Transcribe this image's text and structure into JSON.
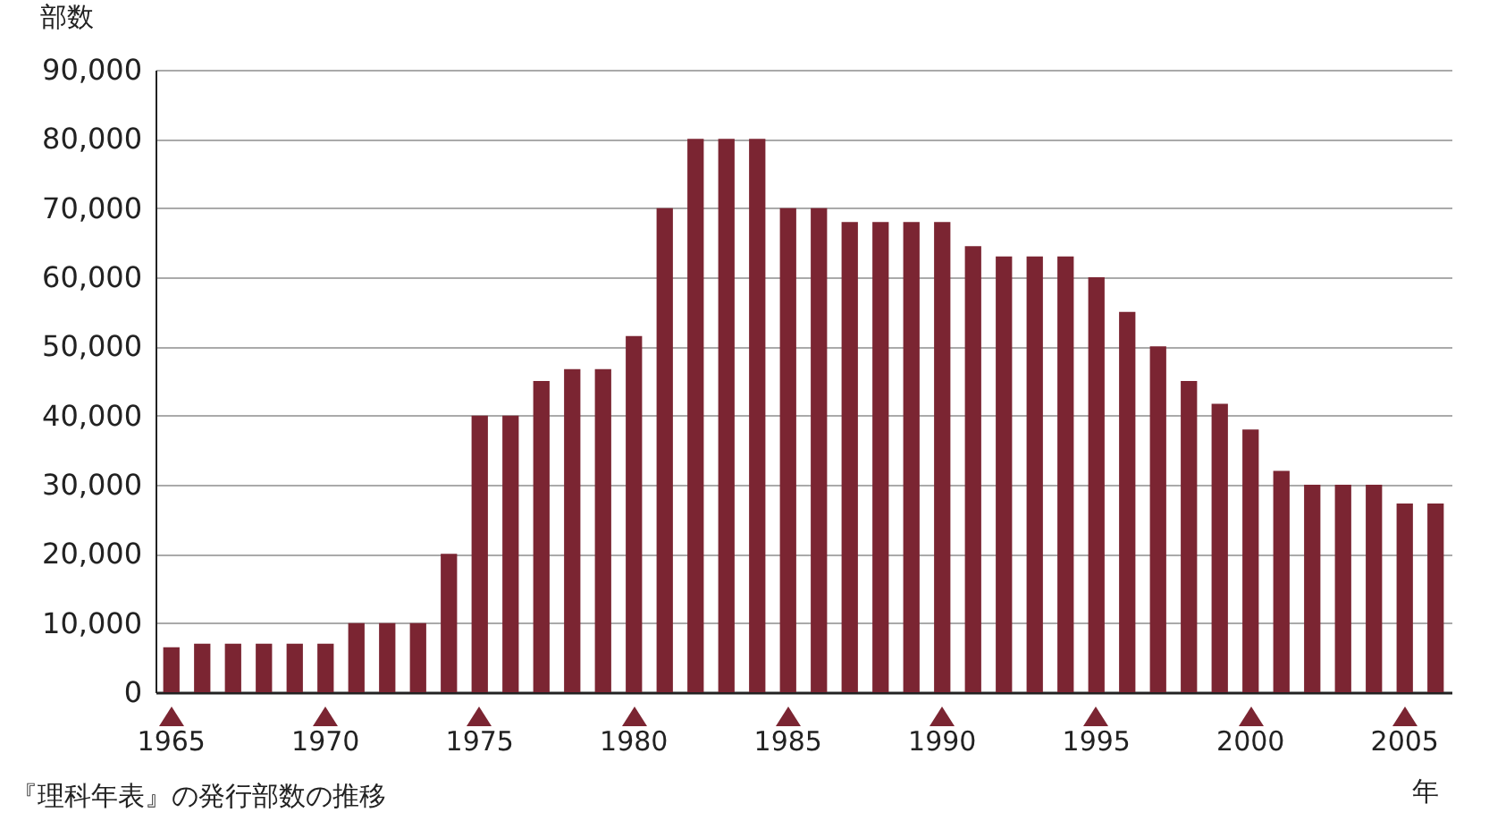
{
  "chart_data": {
    "type": "bar",
    "categories": [
      "1965",
      null,
      null,
      null,
      null,
      "1970",
      null,
      null,
      null,
      null,
      "1975",
      null,
      null,
      null,
      null,
      "1980",
      null,
      null,
      null,
      null,
      "1985",
      null,
      null,
      null,
      null,
      "1990",
      null,
      null,
      null,
      null,
      "1995",
      null,
      null,
      null,
      null,
      "2000",
      null,
      null,
      null,
      null,
      "2005",
      null
    ],
    "values": [
      6500,
      7000,
      7000,
      7000,
      7000,
      7000,
      10000,
      10000,
      10000,
      20000,
      40000,
      40000,
      45000,
      46700,
      46700,
      51500,
      70000,
      80000,
      80000,
      80000,
      70000,
      70000,
      68000,
      68000,
      68000,
      68000,
      64500,
      63000,
      63000,
      63000,
      60000,
      55000,
      50000,
      45000,
      41700,
      38000,
      32000,
      30000,
      30000,
      30000,
      27300,
      27300
    ],
    "color": "#7b2532",
    "ylabel": "部数",
    "xlabel": "年",
    "ylim": [
      0,
      90000
    ],
    "yticks": [
      0,
      {
        "value": 10000,
        "label": "10,000"
      },
      {
        "value": 20000,
        "label": "20,000"
      },
      {
        "value": 30000,
        "label": "30,000"
      },
      {
        "value": 40000,
        "label": "40,000"
      },
      {
        "value": 50000,
        "label": "50,000"
      },
      {
        "value": 60000,
        "label": "60,000"
      },
      {
        "value": 70000,
        "label": "70,000"
      },
      {
        "value": 80000,
        "label": "80,000"
      },
      {
        "value": 90000,
        "label": "90,000"
      }
    ],
    "grid": "y",
    "annotations": [
      "『理科年表』の発行部数の推移"
    ]
  }
}
